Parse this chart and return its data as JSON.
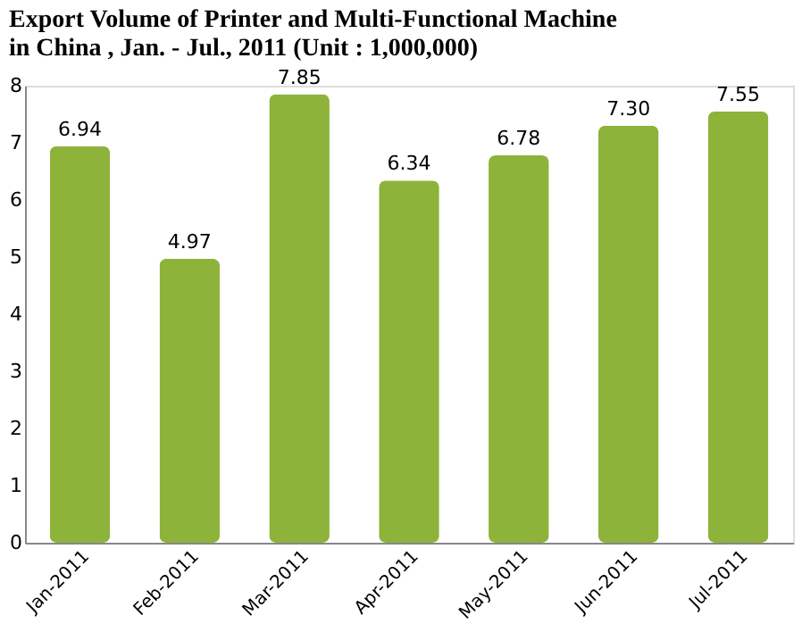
{
  "chart_data": {
    "type": "bar",
    "title": "Export Volume of Printer and Multi-Functional Machine in China , Jan. - Jul., 2011 (Unit : 1,000,000)",
    "categories": [
      "Jan-2011",
      "Feb-2011",
      "Mar-2011",
      "Apr-2011",
      "May-2011",
      "Jun-2011",
      "Jul-2011"
    ],
    "values": [
      6.94,
      4.97,
      7.85,
      6.34,
      6.78,
      7.3,
      7.55
    ],
    "value_labels": [
      "6.94",
      "4.97",
      "7.85",
      "6.34",
      "6.78",
      "7.30",
      "7.55"
    ],
    "color": "#8db33a",
    "ylim": [
      0,
      8
    ],
    "yticks": [
      0,
      1,
      2,
      3,
      4,
      5,
      6,
      7,
      8
    ],
    "grid": false
  }
}
